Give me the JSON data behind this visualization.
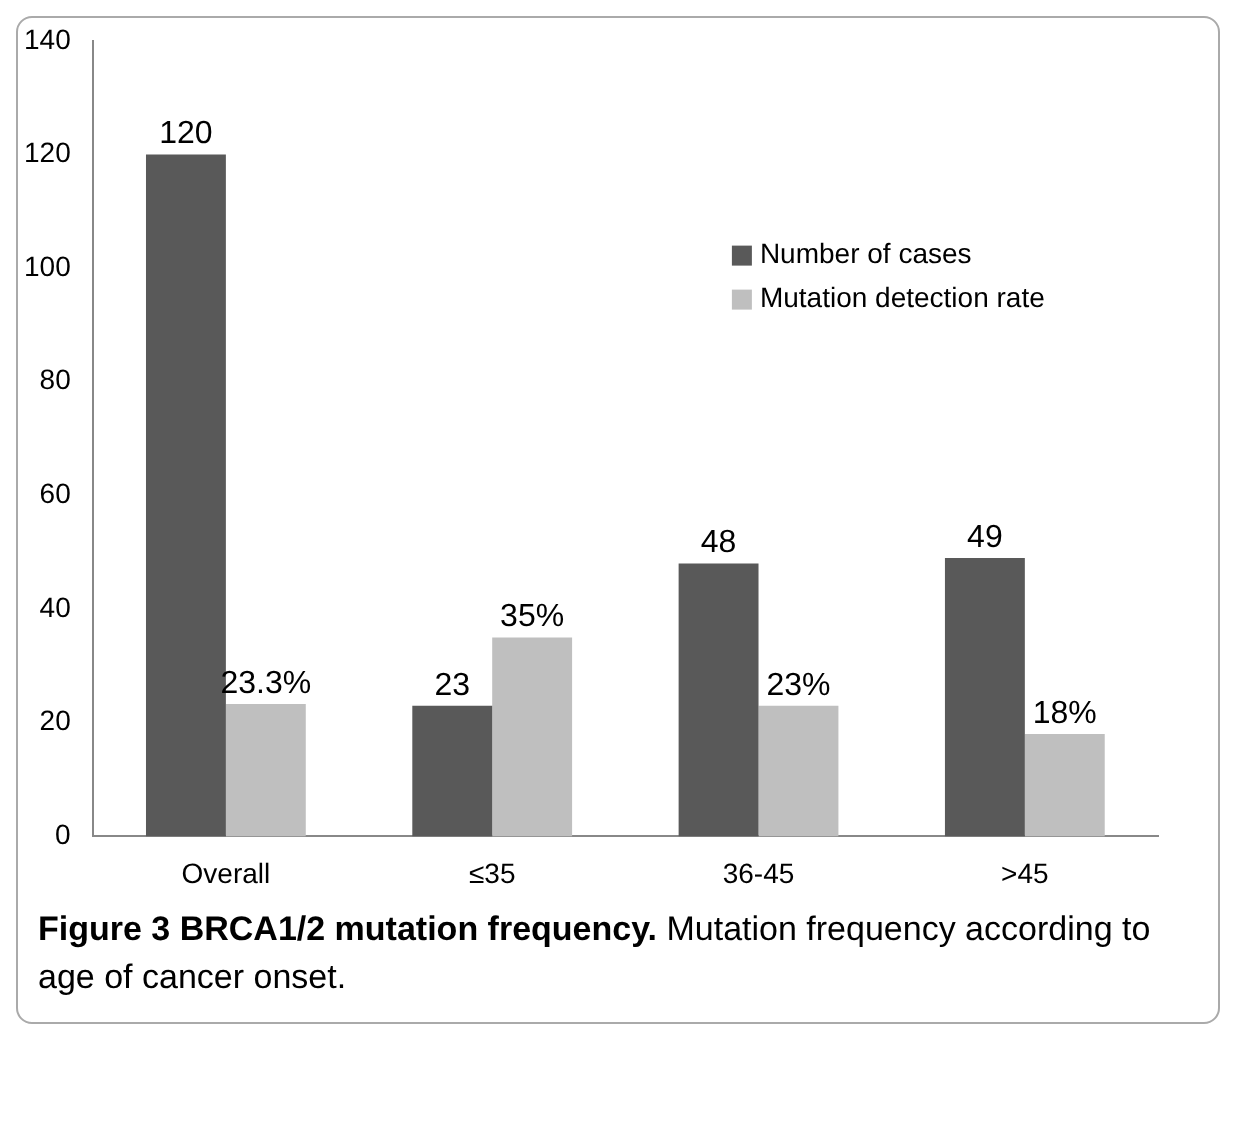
{
  "chart_data": {
    "type": "bar",
    "title": "Figure 3 BRCA1/2 mutation frequency.",
    "subtitle": "Mutation frequency according to age of cancer onset.",
    "categories": [
      "Overall",
      "≤35",
      "36-45",
      ">45"
    ],
    "series": [
      {
        "name": "Number of cases",
        "color": "#595959",
        "values": [
          120,
          23,
          48,
          49
        ],
        "value_labels": [
          "120",
          "23",
          "48",
          "49"
        ]
      },
      {
        "name": "Mutation detection rate",
        "color": "#bfbfbf",
        "values": [
          23.3,
          35,
          23,
          18
        ],
        "value_labels": [
          "23.3%",
          "35%",
          "23%",
          "18%"
        ]
      }
    ],
    "ylim": [
      0,
      140
    ],
    "yticks": [
      0,
      20,
      40,
      60,
      80,
      100,
      120,
      140
    ],
    "grid": false,
    "legend": "right"
  }
}
